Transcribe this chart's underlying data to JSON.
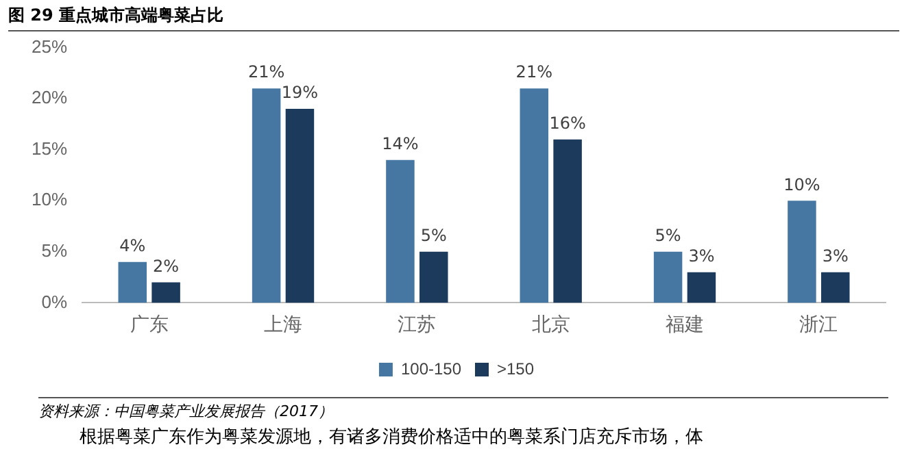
{
  "chart_data": {
    "type": "bar",
    "title": "图 29 重点城市高端粤菜占比",
    "categories": [
      "广东",
      "上海",
      "江苏",
      "北京",
      "福建",
      "浙江"
    ],
    "series": [
      {
        "name": "100-150",
        "color": "#4677a3",
        "values": [
          4,
          21,
          14,
          21,
          5,
          10
        ],
        "value_labels": [
          "4%",
          "21%",
          "14%",
          "21%",
          "5%",
          "10%"
        ]
      },
      {
        "name": ">150",
        "color": "#1c3a5c",
        "values": [
          2,
          19,
          5,
          16,
          3,
          3
        ],
        "value_labels": [
          "2%",
          "19%",
          "5%",
          "16%",
          "3%",
          "3%"
        ]
      }
    ],
    "ylim": [
      0,
      25
    ],
    "yticks": [
      {
        "value": 0,
        "label": "0%"
      },
      {
        "value": 5,
        "label": "5%"
      },
      {
        "value": 10,
        "label": "10%"
      },
      {
        "value": 15,
        "label": "15%"
      },
      {
        "value": 20,
        "label": "20%"
      },
      {
        "value": 25,
        "label": "25%"
      }
    ],
    "grid": false,
    "legend": "bottom",
    "annotations": [
      "资料来源：中国粤菜产业发展报告（2017）",
      "根据粤菜广东作为粤菜发源地，有诸多消费价格适中的粤菜系门店充斥市场，体"
    ]
  }
}
